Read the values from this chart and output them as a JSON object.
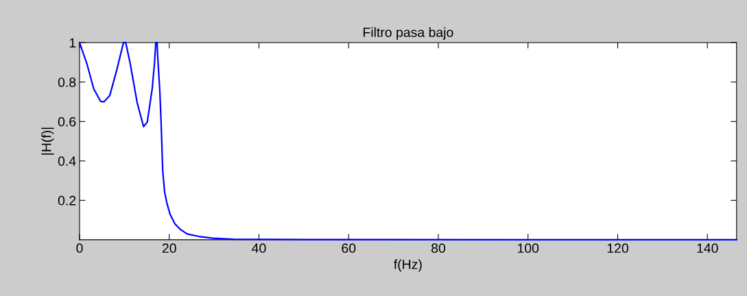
{
  "chart_data": {
    "type": "line",
    "title": "Filtro pasa bajo",
    "xlabel": "f(Hz)",
    "ylabel": "|H(f)|",
    "series": [
      {
        "color": "#0000ff",
        "x": [
          0,
          1.63,
          3.16,
          4.69,
          5.45,
          6.73,
          8.26,
          9.79,
          10.3,
          11.3,
          12.84,
          14.27,
          15.1,
          16.2,
          16.7,
          17.0,
          17.3,
          17.4,
          17.9,
          18.2,
          18.55,
          18.96,
          19.47,
          20.2,
          21.25,
          22.5,
          24.06,
          26.6,
          29.7,
          34.2,
          50,
          100,
          146.5
        ],
        "values": [
          1.0,
          0.893,
          0.766,
          0.702,
          0.7,
          0.731,
          0.858,
          1.0,
          1.0,
          0.893,
          0.696,
          0.574,
          0.597,
          0.766,
          0.893,
          1.0,
          1.0,
          0.94,
          0.754,
          0.586,
          0.348,
          0.244,
          0.186,
          0.128,
          0.081,
          0.052,
          0.029,
          0.017,
          0.008,
          0.003,
          0.001,
          0.0,
          0.0
        ]
      }
    ],
    "xlim": [
      0,
      146.5
    ],
    "xticks": [
      0,
      20,
      40,
      60,
      80,
      100,
      120,
      140
    ],
    "ylim": [
      0,
      1
    ],
    "yticks": [
      0.2,
      0.4,
      0.6,
      0.8,
      1
    ],
    "grid": false,
    "legend": false,
    "marker": "none",
    "line_style": "solid"
  }
}
